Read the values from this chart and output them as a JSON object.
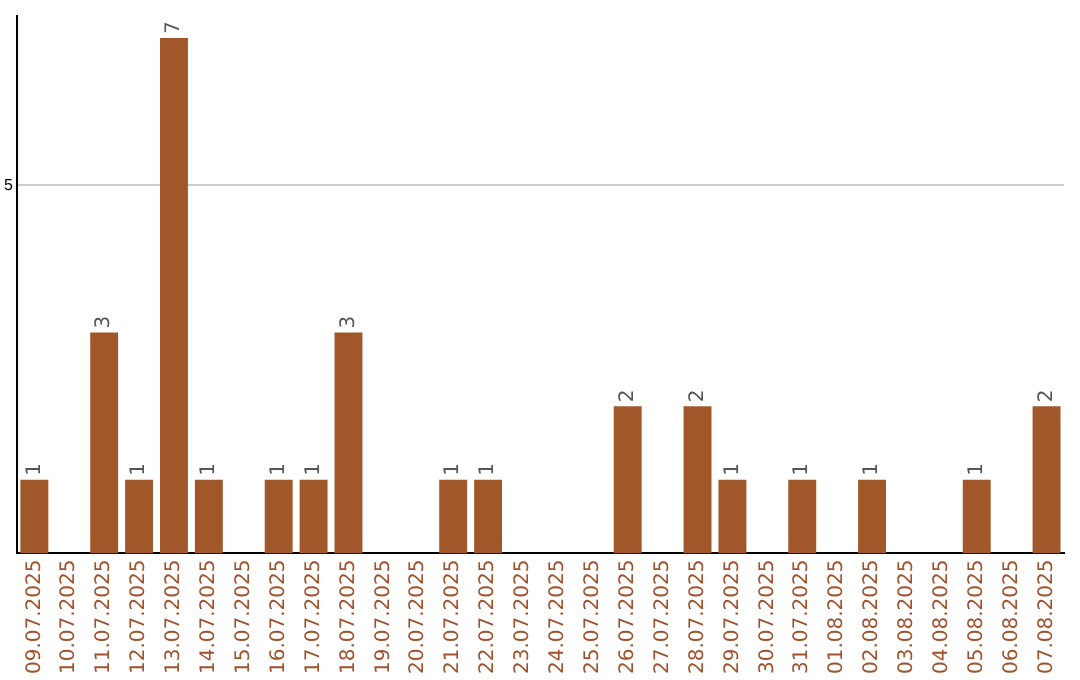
{
  "chart_data": {
    "type": "bar",
    "categories": [
      "09.07.2025",
      "10.07.2025",
      "11.07.2025",
      "12.07.2025",
      "13.07.2025",
      "14.07.2025",
      "15.07.2025",
      "16.07.2025",
      "17.07.2025",
      "18.07.2025",
      "19.07.2025",
      "20.07.2025",
      "21.07.2025",
      "22.07.2025",
      "23.07.2025",
      "24.07.2025",
      "25.07.2025",
      "26.07.2025",
      "27.07.2025",
      "28.07.2025",
      "29.07.2025",
      "30.07.2025",
      "31.07.2025",
      "01.08.2025",
      "02.08.2025",
      "03.08.2025",
      "04.08.2025",
      "05.08.2025",
      "06.08.2025",
      "07.08.2025"
    ],
    "values": [
      1,
      0,
      3,
      1,
      7,
      1,
      0,
      1,
      1,
      3,
      0,
      0,
      1,
      1,
      0,
      0,
      0,
      2,
      0,
      2,
      1,
      0,
      1,
      0,
      1,
      0,
      0,
      1,
      0,
      2
    ],
    "value_labels": [
      "1",
      null,
      "3",
      "1",
      "7",
      "1",
      null,
      "1",
      "1",
      "3",
      null,
      null,
      "1",
      "1",
      null,
      null,
      null,
      "2",
      null,
      "2",
      "1",
      null,
      "1",
      null,
      "1",
      null,
      null,
      "1",
      null,
      "2"
    ],
    "color": "#a0582a",
    "ylim": [
      0,
      7.3
    ],
    "yticks": [
      5
    ],
    "grid": "y",
    "legend": false
  }
}
